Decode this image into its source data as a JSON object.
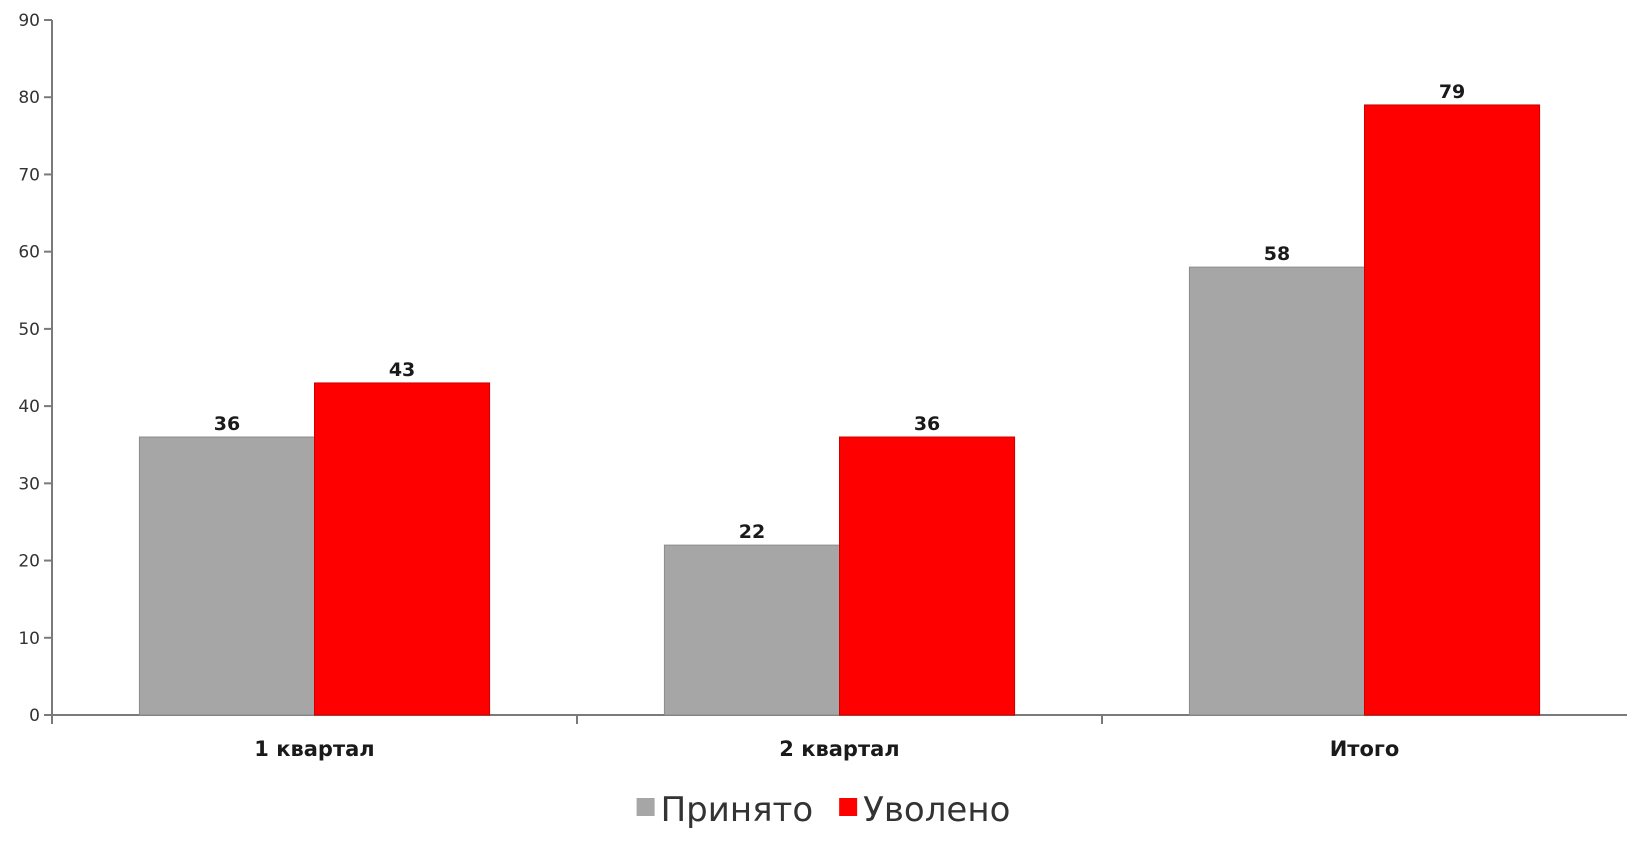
{
  "chart_data": {
    "type": "bar",
    "categories": [
      "1 квартал",
      "2 квартал",
      "Итого"
    ],
    "series": [
      {
        "name": "Принято",
        "values": [
          36,
          22,
          58
        ],
        "color": "#a6a6a6"
      },
      {
        "name": "Уволено",
        "values": [
          43,
          36,
          79
        ],
        "color": "#ff0000"
      }
    ],
    "yticks": [
      0,
      10,
      20,
      30,
      40,
      50,
      60,
      70,
      80,
      90
    ],
    "ylim": [
      0,
      90
    ],
    "grid": false,
    "data_labels": true,
    "legend_position": "bottom-center",
    "axis_color": "#7a7a7a"
  }
}
